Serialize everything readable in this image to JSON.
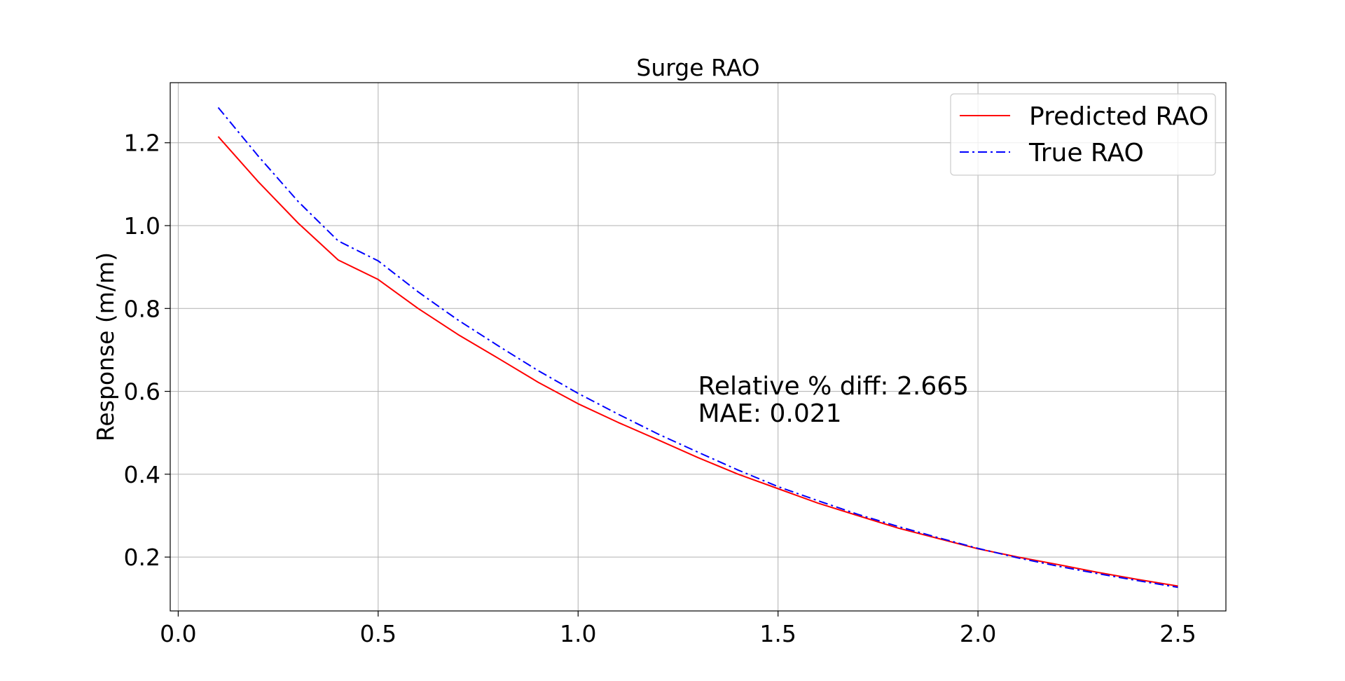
{
  "chart_data": {
    "type": "line",
    "title": "Surge RAO",
    "xlabel": "",
    "ylabel": "Response (m/m)",
    "xlim": [
      -0.02,
      2.62
    ],
    "ylim": [
      0.07,
      1.345
    ],
    "xticks": [
      0.0,
      0.5,
      1.0,
      1.5,
      2.0,
      2.5
    ],
    "xtick_labels": [
      "0.0",
      "0.5",
      "1.0",
      "1.5",
      "2.0",
      "2.5"
    ],
    "yticks": [
      0.2,
      0.4,
      0.6,
      0.8,
      1.0,
      1.2
    ],
    "ytick_labels": [
      "0.2",
      "0.4",
      "0.6",
      "0.8",
      "1.0",
      "1.2"
    ],
    "grid": true,
    "legend_position": "upper right",
    "series": [
      {
        "name": "Predicted RAO",
        "color": "#ff0000",
        "style": "solid",
        "x": [
          0.1,
          0.2,
          0.3,
          0.4,
          0.5,
          0.6,
          0.7,
          0.8,
          0.9,
          1.0,
          1.1,
          1.2,
          1.3,
          1.4,
          1.5,
          1.6,
          1.7,
          1.8,
          1.9,
          2.0,
          2.1,
          2.2,
          2.3,
          2.4,
          2.5
        ],
        "y": [
          1.215,
          1.106,
          1.006,
          0.917,
          0.87,
          0.8,
          0.737,
          0.68,
          0.622,
          0.57,
          0.525,
          0.483,
          0.44,
          0.4,
          0.365,
          0.33,
          0.3,
          0.27,
          0.245,
          0.22,
          0.2,
          0.182,
          0.163,
          0.146,
          0.13
        ]
      },
      {
        "name": "True RAO",
        "color": "#0000ff",
        "style": "dashdot",
        "x": [
          0.1,
          0.2,
          0.3,
          0.4,
          0.5,
          0.6,
          0.7,
          0.8,
          0.9,
          1.0,
          1.1,
          1.2,
          1.3,
          1.4,
          1.5,
          1.6,
          1.7,
          1.8,
          1.9,
          2.0,
          2.1,
          2.2,
          2.3,
          2.4,
          2.5
        ],
        "y": [
          1.285,
          1.168,
          1.058,
          0.963,
          0.915,
          0.84,
          0.772,
          0.71,
          0.65,
          0.595,
          0.545,
          0.497,
          0.453,
          0.41,
          0.37,
          0.336,
          0.303,
          0.274,
          0.247,
          0.221,
          0.198,
          0.178,
          0.16,
          0.143,
          0.127
        ]
      }
    ],
    "annotation": {
      "line1": "Relative % diff: 2.665",
      "line2": "MAE: 0.021"
    }
  }
}
